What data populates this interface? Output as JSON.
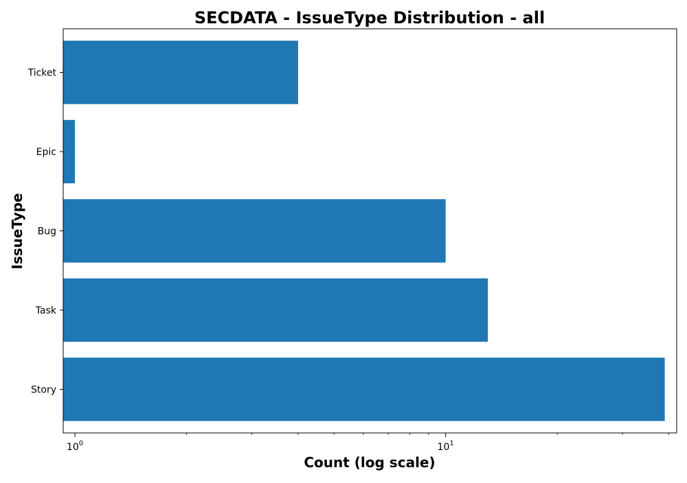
{
  "chart_data": {
    "type": "bar",
    "orientation": "horizontal",
    "title": "SECDATA - IssueType Distribution - all",
    "xlabel": "Count (log scale)",
    "ylabel": "IssueType",
    "x_scale": "log",
    "xlim": [
      0.93,
      42
    ],
    "x_major_ticks": [
      {
        "value": 1,
        "base": "10",
        "exp": "0"
      },
      {
        "value": 10,
        "base": "10",
        "exp": "1"
      }
    ],
    "categories": [
      "Story",
      "Task",
      "Bug",
      "Epic",
      "Ticket"
    ],
    "values": [
      39,
      13,
      10,
      1,
      4
    ],
    "bar_color": "#1f77b4",
    "grid": false,
    "legend": "none"
  }
}
